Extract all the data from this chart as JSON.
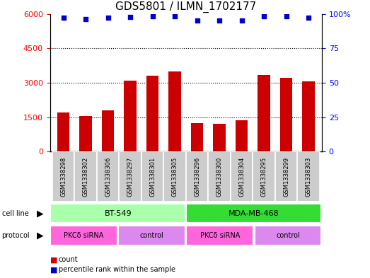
{
  "title": "GDS5801 / ILMN_1702177",
  "samples": [
    "GSM1338298",
    "GSM1338302",
    "GSM1338306",
    "GSM1338297",
    "GSM1338301",
    "GSM1338305",
    "GSM1338296",
    "GSM1338300",
    "GSM1338304",
    "GSM1338295",
    "GSM1338299",
    "GSM1338303"
  ],
  "counts": [
    1700,
    1550,
    1800,
    3100,
    3300,
    3500,
    1250,
    1200,
    1350,
    3350,
    3200,
    3050
  ],
  "percentiles": [
    97,
    96,
    97,
    98,
    98.5,
    98.5,
    95,
    95,
    95,
    98.5,
    98.5,
    97
  ],
  "ylim_left": [
    0,
    6000
  ],
  "ylim_right": [
    0,
    100
  ],
  "yticks_left": [
    0,
    1500,
    3000,
    4500,
    6000
  ],
  "yticks_right": [
    0,
    25,
    50,
    75,
    100
  ],
  "cell_lines": [
    {
      "label": "BT-549",
      "start": 0,
      "end": 6,
      "color": "#AAFFAA"
    },
    {
      "label": "MDA-MB-468",
      "start": 6,
      "end": 12,
      "color": "#33DD33"
    }
  ],
  "protocols": [
    {
      "label": "PKCδ siRNA",
      "start": 0,
      "end": 3,
      "color": "#FF66DD"
    },
    {
      "label": "control",
      "start": 3,
      "end": 6,
      "color": "#DD88EE"
    },
    {
      "label": "PKCδ siRNA",
      "start": 6,
      "end": 9,
      "color": "#FF66DD"
    },
    {
      "label": "control",
      "start": 9,
      "end": 12,
      "color": "#DD88EE"
    }
  ],
  "bar_color": "#CC0000",
  "dot_color": "#0000CC",
  "bar_width": 0.55,
  "legend_count_color": "#CC0000",
  "legend_pct_color": "#0000CC",
  "background_color": "#ffffff",
  "cell_line_row_label": "cell line",
  "protocol_row_label": "protocol",
  "sample_box_color": "#CCCCCC",
  "grid_color": "#000000",
  "grid_linestyle": "dotted",
  "grid_linewidth": 0.8,
  "title_fontsize": 11,
  "tick_fontsize": 8,
  "label_fontsize": 7,
  "sample_fontsize": 6
}
